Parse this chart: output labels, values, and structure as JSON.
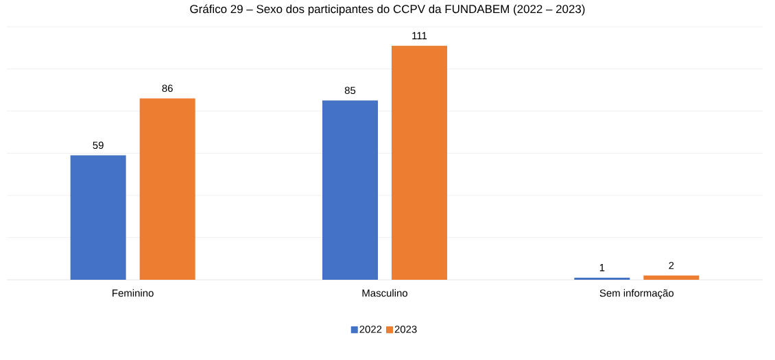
{
  "chart_data": {
    "type": "bar",
    "title": "Gráfico 29 – Sexo dos participantes do CCPV da FUNDABEM (2022 – 2023)",
    "categories": [
      "Feminino",
      "Masculino",
      "Sem informação"
    ],
    "series": [
      {
        "name": "2022",
        "color": "#4472c4",
        "values": [
          59,
          85,
          1
        ]
      },
      {
        "name": "2023",
        "color": "#ed7d31",
        "values": [
          86,
          111,
          2
        ]
      }
    ],
    "ylim": [
      0,
      120
    ],
    "yticks": [
      {
        "value": 0,
        "label": null
      },
      {
        "value": 20,
        "label": null
      },
      {
        "value": 40,
        "label": null
      },
      {
        "value": 60,
        "label": null
      },
      {
        "value": 80,
        "label": null
      },
      {
        "value": 100,
        "label": null
      },
      {
        "value": 120,
        "label": null
      }
    ],
    "tick_labels": "x",
    "grid": "y",
    "data_labels": true,
    "legend": "bottom"
  }
}
